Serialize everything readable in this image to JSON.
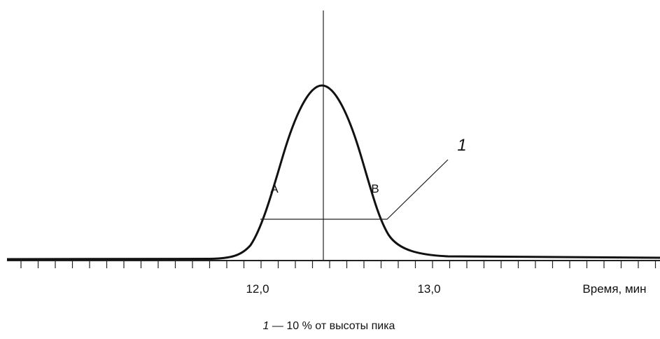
{
  "axis": {
    "tick_labels": [
      "12,0",
      "13,0"
    ],
    "label": "Время, мин"
  },
  "annotations": {
    "left": "A",
    "right": "B",
    "callout": "1"
  },
  "caption": {
    "number": "1",
    "text": "— 10 % от высоты пика"
  }
}
